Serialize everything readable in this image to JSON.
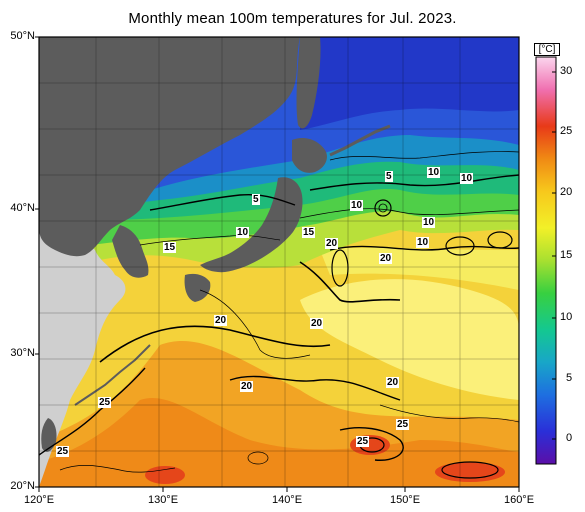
{
  "title": "Monthly mean 100m temperatures for Jul. 2023.",
  "colorbar": {
    "unit": "[°C]",
    "ticks": [
      "30",
      "25",
      "20",
      "15",
      "10",
      "5",
      "0"
    ],
    "stops": [
      "#5b0fa8",
      "#2a2fd8",
      "#1e6fe0",
      "#18a6c8",
      "#14c890",
      "#38d040",
      "#a8e030",
      "#f2f028",
      "#f7c81c",
      "#f08a14",
      "#e83a18",
      "#f070b0",
      "#fbd6ee"
    ]
  },
  "axes": {
    "lat_labels": [
      "50°N",
      "40°N",
      "30°N",
      "20°N"
    ],
    "lon_labels": [
      "120°E",
      "130°E",
      "140°E",
      "150°E",
      "160°E"
    ]
  },
  "contour_labels": [
    "5",
    "5",
    "10",
    "10",
    "10",
    "10",
    "10",
    "10",
    "15",
    "15",
    "20",
    "20",
    "20",
    "20",
    "20",
    "20",
    "25",
    "25",
    "25"
  ],
  "colors": {
    "land": "#5c5c5c",
    "continent": "#c8c8c8",
    "cold": "#2233cc",
    "cool": "#18b86a",
    "mild": "#a8e030",
    "warm": "#f2e84a",
    "hot": "#f08a14",
    "hottest": "#e83a18"
  }
}
